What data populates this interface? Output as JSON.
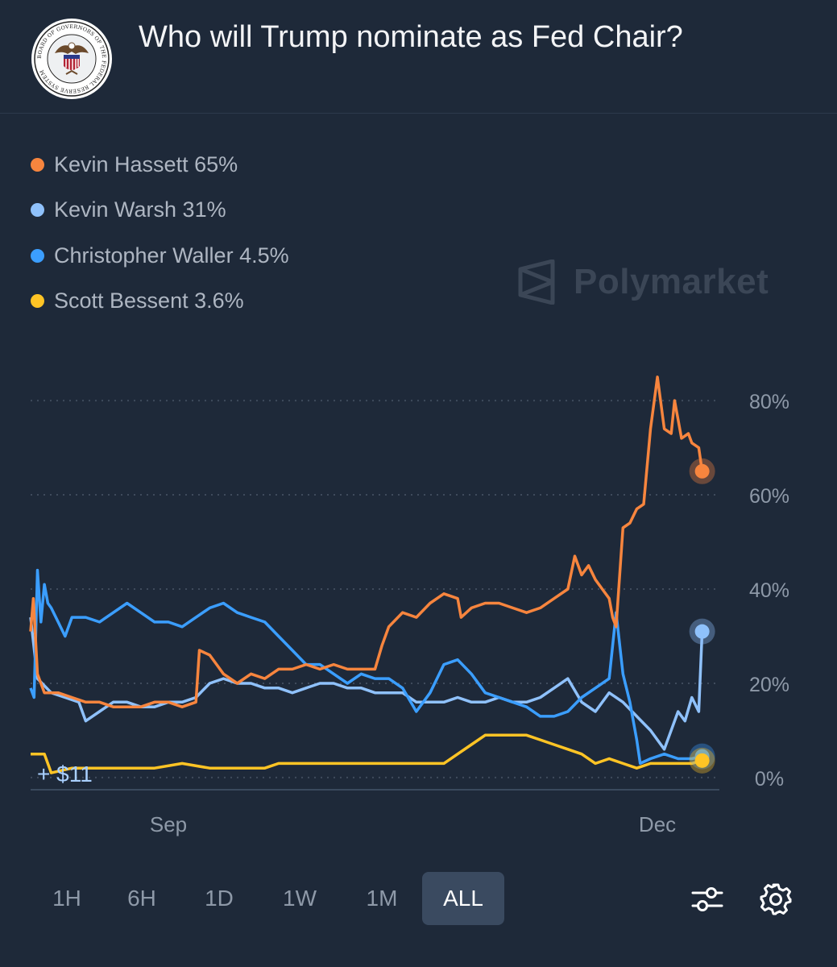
{
  "header": {
    "title": "Who will Trump nominate as Fed Chair?",
    "logo_icon": "federal-reserve-seal-icon",
    "logo_text": "BOARD OF GOVERNORS OF THE FEDERAL RESERVE SYSTEM"
  },
  "watermark": {
    "text": "Polymarket",
    "icon": "polymarket-logo-icon"
  },
  "chart_data": {
    "type": "line",
    "title": "",
    "xlabel": "",
    "ylabel": "",
    "ylim": [
      -6,
      86
    ],
    "y_ticks": [
      0,
      20,
      40,
      60,
      80
    ],
    "y_tick_labels": [
      "0%",
      "20%",
      "40%",
      "60%",
      "80%"
    ],
    "x_tick_labels": [
      "Sep",
      "Dec"
    ],
    "x_tick_positions": [
      0.2,
      0.91
    ],
    "grid": "horizontal dotted",
    "legend_position": "top-left",
    "annotation": "+ $11",
    "series": [
      {
        "name": "Kevin Hassett",
        "legend": "Kevin Hassett 65%",
        "color": "#f7853e",
        "values": [
          [
            0,
            31
          ],
          [
            0.004,
            38
          ],
          [
            0.01,
            22
          ],
          [
            0.02,
            18
          ],
          [
            0.04,
            18
          ],
          [
            0.06,
            17
          ],
          [
            0.08,
            16
          ],
          [
            0.1,
            16
          ],
          [
            0.12,
            15
          ],
          [
            0.14,
            15
          ],
          [
            0.16,
            15
          ],
          [
            0.18,
            16
          ],
          [
            0.2,
            16
          ],
          [
            0.22,
            15
          ],
          [
            0.24,
            16
          ],
          [
            0.245,
            27
          ],
          [
            0.26,
            26
          ],
          [
            0.27,
            24
          ],
          [
            0.28,
            22
          ],
          [
            0.3,
            20
          ],
          [
            0.32,
            22
          ],
          [
            0.34,
            21
          ],
          [
            0.36,
            23
          ],
          [
            0.38,
            23
          ],
          [
            0.4,
            24
          ],
          [
            0.42,
            23
          ],
          [
            0.44,
            24
          ],
          [
            0.46,
            23
          ],
          [
            0.48,
            23
          ],
          [
            0.5,
            23
          ],
          [
            0.51,
            28
          ],
          [
            0.52,
            32
          ],
          [
            0.54,
            35
          ],
          [
            0.56,
            34
          ],
          [
            0.58,
            37
          ],
          [
            0.6,
            39
          ],
          [
            0.62,
            38
          ],
          [
            0.625,
            34
          ],
          [
            0.64,
            36
          ],
          [
            0.66,
            37
          ],
          [
            0.68,
            37
          ],
          [
            0.7,
            36
          ],
          [
            0.72,
            35
          ],
          [
            0.74,
            36
          ],
          [
            0.76,
            38
          ],
          [
            0.78,
            40
          ],
          [
            0.79,
            47
          ],
          [
            0.8,
            43
          ],
          [
            0.81,
            45
          ],
          [
            0.82,
            42
          ],
          [
            0.83,
            40
          ],
          [
            0.84,
            38
          ],
          [
            0.845,
            34
          ],
          [
            0.85,
            32
          ],
          [
            0.86,
            53
          ],
          [
            0.87,
            54
          ],
          [
            0.88,
            57
          ],
          [
            0.89,
            58
          ],
          [
            0.9,
            74
          ],
          [
            0.91,
            85
          ],
          [
            0.92,
            74
          ],
          [
            0.93,
            73
          ],
          [
            0.935,
            80
          ],
          [
            0.945,
            72
          ],
          [
            0.955,
            73
          ],
          [
            0.96,
            71
          ],
          [
            0.97,
            70
          ],
          [
            0.975,
            65
          ]
        ]
      },
      {
        "name": "Kevin Warsh",
        "legend": "Kevin Warsh 31%",
        "color": "#8fc1fb",
        "values": [
          [
            0,
            34
          ],
          [
            0.01,
            21
          ],
          [
            0.03,
            18
          ],
          [
            0.05,
            17
          ],
          [
            0.07,
            16
          ],
          [
            0.08,
            12
          ],
          [
            0.1,
            14
          ],
          [
            0.12,
            16
          ],
          [
            0.14,
            16
          ],
          [
            0.16,
            15
          ],
          [
            0.18,
            15
          ],
          [
            0.2,
            16
          ],
          [
            0.22,
            16
          ],
          [
            0.24,
            17
          ],
          [
            0.26,
            20
          ],
          [
            0.28,
            21
          ],
          [
            0.3,
            20
          ],
          [
            0.32,
            20
          ],
          [
            0.34,
            19
          ],
          [
            0.36,
            19
          ],
          [
            0.38,
            18
          ],
          [
            0.4,
            19
          ],
          [
            0.42,
            20
          ],
          [
            0.44,
            20
          ],
          [
            0.46,
            19
          ],
          [
            0.48,
            19
          ],
          [
            0.5,
            18
          ],
          [
            0.52,
            18
          ],
          [
            0.54,
            18
          ],
          [
            0.56,
            16
          ],
          [
            0.58,
            16
          ],
          [
            0.6,
            16
          ],
          [
            0.62,
            17
          ],
          [
            0.64,
            16
          ],
          [
            0.66,
            16
          ],
          [
            0.68,
            17
          ],
          [
            0.7,
            16
          ],
          [
            0.72,
            16
          ],
          [
            0.74,
            17
          ],
          [
            0.76,
            19
          ],
          [
            0.78,
            21
          ],
          [
            0.8,
            16
          ],
          [
            0.82,
            14
          ],
          [
            0.84,
            18
          ],
          [
            0.86,
            16
          ],
          [
            0.88,
            13
          ],
          [
            0.9,
            10
          ],
          [
            0.92,
            6
          ],
          [
            0.94,
            14
          ],
          [
            0.95,
            12
          ],
          [
            0.96,
            17
          ],
          [
            0.97,
            14
          ],
          [
            0.975,
            31
          ]
        ]
      },
      {
        "name": "Christopher Waller",
        "legend": "Christopher Waller 4.5%",
        "color": "#3b9eff",
        "values": [
          [
            0,
            19
          ],
          [
            0.005,
            17
          ],
          [
            0.01,
            44
          ],
          [
            0.015,
            33
          ],
          [
            0.02,
            41
          ],
          [
            0.025,
            37
          ],
          [
            0.03,
            36
          ],
          [
            0.04,
            33
          ],
          [
            0.05,
            30
          ],
          [
            0.06,
            34
          ],
          [
            0.08,
            34
          ],
          [
            0.1,
            33
          ],
          [
            0.12,
            35
          ],
          [
            0.14,
            37
          ],
          [
            0.16,
            35
          ],
          [
            0.18,
            33
          ],
          [
            0.2,
            33
          ],
          [
            0.22,
            32
          ],
          [
            0.24,
            34
          ],
          [
            0.26,
            36
          ],
          [
            0.28,
            37
          ],
          [
            0.3,
            35
          ],
          [
            0.32,
            34
          ],
          [
            0.34,
            33
          ],
          [
            0.36,
            30
          ],
          [
            0.38,
            27
          ],
          [
            0.4,
            24
          ],
          [
            0.42,
            24
          ],
          [
            0.44,
            22
          ],
          [
            0.46,
            20
          ],
          [
            0.48,
            22
          ],
          [
            0.5,
            21
          ],
          [
            0.52,
            21
          ],
          [
            0.54,
            19
          ],
          [
            0.56,
            14
          ],
          [
            0.58,
            18
          ],
          [
            0.6,
            24
          ],
          [
            0.62,
            25
          ],
          [
            0.64,
            22
          ],
          [
            0.66,
            18
          ],
          [
            0.68,
            17
          ],
          [
            0.7,
            16
          ],
          [
            0.72,
            15
          ],
          [
            0.74,
            13
          ],
          [
            0.76,
            13
          ],
          [
            0.78,
            14
          ],
          [
            0.8,
            17
          ],
          [
            0.82,
            19
          ],
          [
            0.84,
            21
          ],
          [
            0.85,
            35
          ],
          [
            0.86,
            22
          ],
          [
            0.87,
            16
          ],
          [
            0.88,
            8
          ],
          [
            0.885,
            3
          ],
          [
            0.9,
            4
          ],
          [
            0.92,
            5
          ],
          [
            0.94,
            4
          ],
          [
            0.96,
            4
          ],
          [
            0.975,
            4.5
          ]
        ]
      },
      {
        "name": "Scott Bessent",
        "legend": "Scott Bessent 3.6%",
        "color": "#ffc425",
        "values": [
          [
            0,
            5
          ],
          [
            0.02,
            5
          ],
          [
            0.03,
            1
          ],
          [
            0.06,
            2
          ],
          [
            0.1,
            2
          ],
          [
            0.14,
            2
          ],
          [
            0.18,
            2
          ],
          [
            0.22,
            3
          ],
          [
            0.26,
            2
          ],
          [
            0.3,
            2
          ],
          [
            0.34,
            2
          ],
          [
            0.36,
            3
          ],
          [
            0.4,
            3
          ],
          [
            0.44,
            3
          ],
          [
            0.48,
            3
          ],
          [
            0.5,
            3
          ],
          [
            0.54,
            3
          ],
          [
            0.58,
            3
          ],
          [
            0.6,
            3
          ],
          [
            0.62,
            5
          ],
          [
            0.64,
            7
          ],
          [
            0.66,
            9
          ],
          [
            0.68,
            9
          ],
          [
            0.7,
            9
          ],
          [
            0.72,
            9
          ],
          [
            0.74,
            8
          ],
          [
            0.76,
            7
          ],
          [
            0.78,
            6
          ],
          [
            0.8,
            5
          ],
          [
            0.82,
            3
          ],
          [
            0.84,
            4
          ],
          [
            0.86,
            3
          ],
          [
            0.88,
            2
          ],
          [
            0.9,
            3
          ],
          [
            0.92,
            3
          ],
          [
            0.94,
            3
          ],
          [
            0.96,
            3
          ],
          [
            0.975,
            3.6
          ]
        ]
      }
    ]
  },
  "timeframes": {
    "active": "ALL",
    "items": [
      {
        "label": "1H",
        "width": 90
      },
      {
        "label": "6H",
        "width": 96
      },
      {
        "label": "1D",
        "width": 96
      },
      {
        "label": "1W",
        "width": 104
      },
      {
        "label": "1M",
        "width": 100
      },
      {
        "label": "ALL",
        "width": 102
      }
    ]
  },
  "toolbar": {
    "filter_icon": "sliders-icon",
    "settings_icon": "gear-icon"
  }
}
